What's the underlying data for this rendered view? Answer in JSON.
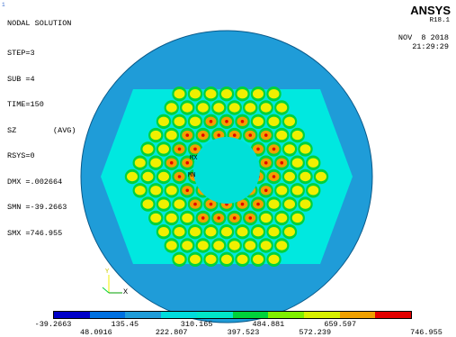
{
  "window_number": "1",
  "header": {
    "title": "NODAL SOLUTION",
    "brand": "ANSYS",
    "version": "R18.1",
    "date": "NOV  8 2018",
    "time": "21:29:29"
  },
  "info_lines": [
    "STEP=3",
    "SUB =4",
    "TIME=150",
    "SZ        (AVG)",
    "RSYS=0",
    "DMX =.002664",
    "SMN =-39.2663",
    "SMX =746.955"
  ],
  "markers": {
    "max": "MX",
    "min": "MN"
  },
  "triad": {
    "x_label": "X",
    "y_label": "Y"
  },
  "colors": {
    "outer_ring": "#1f9cd8",
    "matrix": "#00e8e0",
    "green": "#00d23a",
    "light_green": "#80f000",
    "yellow": "#f0f000",
    "orange": "#f0a000",
    "red": "#e40000"
  },
  "legend": {
    "colors": [
      "#0000c8",
      "#0070e0",
      "#1f9cd8",
      "#00dcdc",
      "#00e6c8",
      "#00d23a",
      "#80f000",
      "#d8f000",
      "#f0a000",
      "#e40000"
    ],
    "labels_top": [
      "-39.2663",
      "135.45",
      "310.165",
      "484.881",
      "659.597"
    ],
    "labels_bottom": [
      "48.0916",
      "222.807",
      "397.523",
      "572.239",
      "746.955"
    ]
  }
}
